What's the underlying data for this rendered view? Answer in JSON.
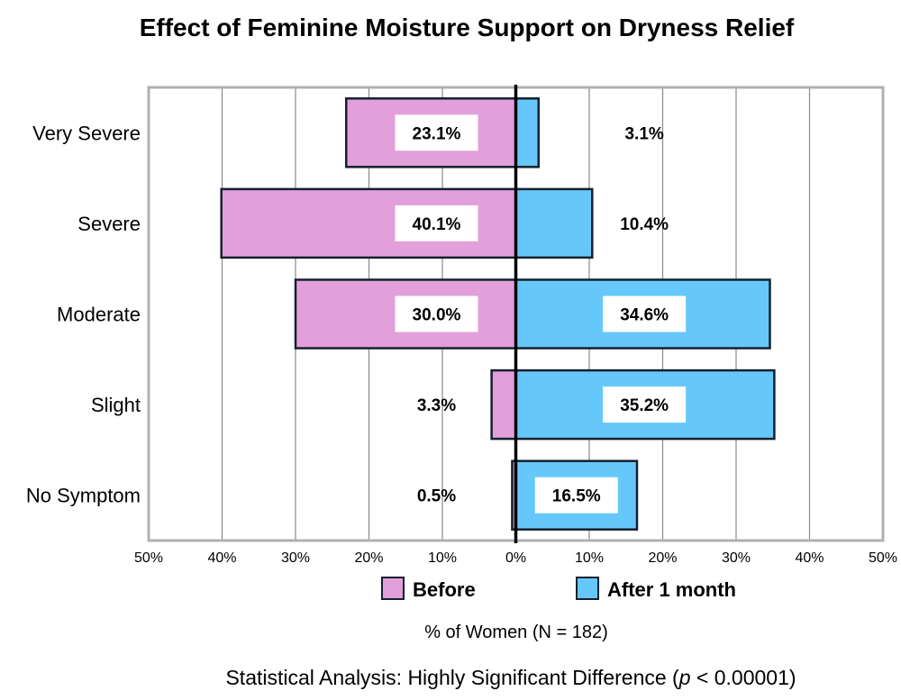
{
  "chart_data": {
    "type": "bar",
    "orientation": "horizontal-diverging",
    "title": "Effect of Feminine Moisture Support on Dryness Relief",
    "categories": [
      "Very Severe",
      "Severe",
      "Moderate",
      "Slight",
      "No Symptom"
    ],
    "series": [
      {
        "name": "Before",
        "values": [
          23.1,
          40.1,
          30.0,
          3.3,
          0.5
        ],
        "labels": [
          "23.1%",
          "40.1%",
          "30.0%",
          "3.3%",
          "0.5%"
        ],
        "color": "#E29FDA",
        "direction": "left"
      },
      {
        "name": "After 1 month",
        "values": [
          3.1,
          10.4,
          34.6,
          35.2,
          16.5
        ],
        "labels": [
          "3.1%",
          "10.4%",
          "34.6%",
          "35.2%",
          "16.5%"
        ],
        "color": "#66C8FA",
        "direction": "right"
      }
    ],
    "xlim": [
      -50,
      50
    ],
    "xticks": [
      "50%",
      "40%",
      "30%",
      "20%",
      "10%",
      "0%",
      "10%",
      "20%",
      "30%",
      "40%",
      "50%"
    ],
    "xlabel": "% of Women (N = 182)",
    "grid": true,
    "legend": "bottom",
    "footnote_prefix": "Statistical Analysis: Highly Significant Difference (",
    "footnote_p": "p",
    "footnote_suffix": " < 0.00001)"
  }
}
